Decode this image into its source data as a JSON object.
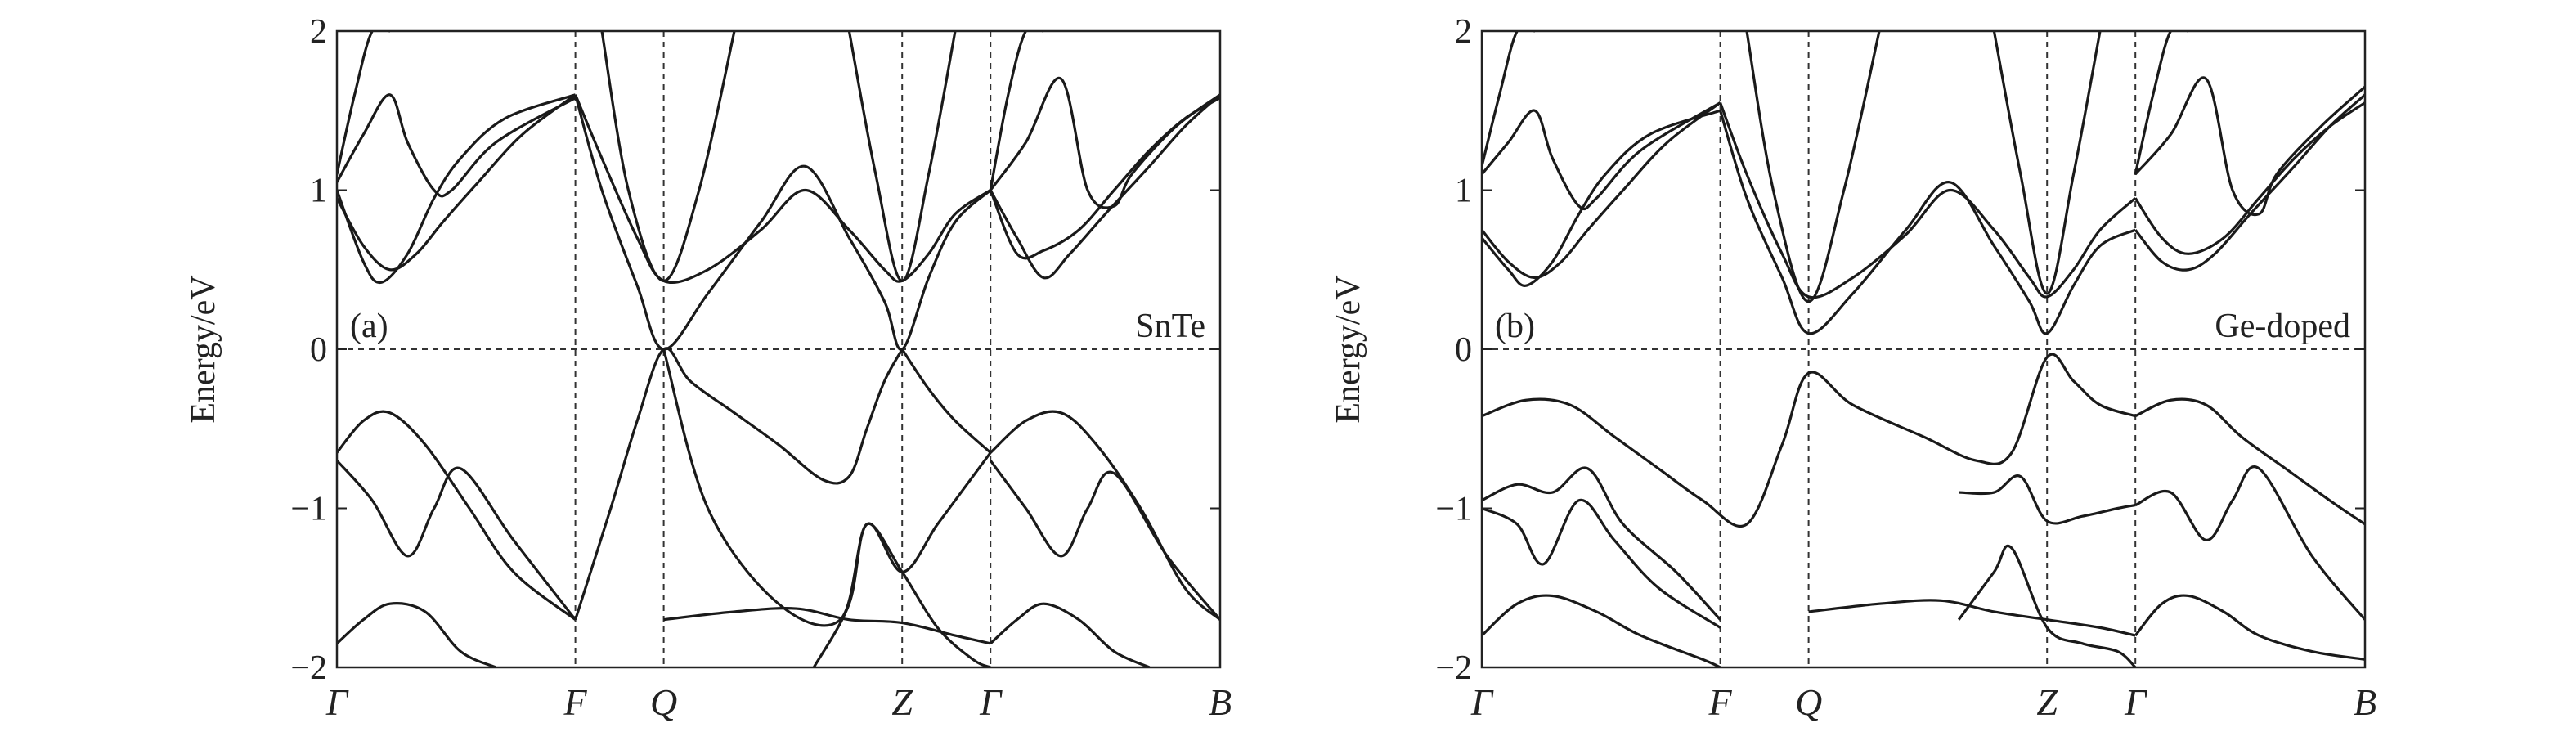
{
  "chart_data": [
    {
      "type": "line",
      "panel_label": "(a)",
      "material": "SnTe",
      "ylabel": "Energy/eV",
      "ylim": [
        -2,
        2
      ],
      "yticks": [
        -2,
        -1,
        0,
        1,
        2
      ],
      "ytick_labels": [
        "−2",
        "−1",
        "0",
        "1",
        "2"
      ],
      "kpoints": [
        {
          "label": "Γ",
          "x": 0.0
        },
        {
          "label": "F",
          "x": 0.27
        },
        {
          "label": "Q",
          "x": 0.37
        },
        {
          "label": "Z",
          "x": 0.64
        },
        {
          "label": "Γ",
          "x": 0.74
        },
        {
          "label": "B",
          "x": 1.0
        }
      ],
      "fermi_level": 0,
      "series": [
        {
          "name": "cond-Q-upper",
          "x": [
            0.27,
            0.3,
            0.34,
            0.37,
            0.42,
            0.48,
            0.53,
            0.58,
            0.62,
            0.64,
            0.67,
            0.7,
            0.74
          ],
          "y": [
            1.6,
            1.2,
            0.7,
            0.43,
            0.5,
            0.75,
            1.0,
            0.75,
            0.5,
            0.43,
            0.6,
            0.85,
            1.0
          ]
        },
        {
          "name": "cond-Q-lower",
          "x": [
            0.27,
            0.3,
            0.34,
            0.37,
            0.42,
            0.48,
            0.53,
            0.58,
            0.62,
            0.64,
            0.67,
            0.7,
            0.74
          ],
          "y": [
            1.6,
            1.0,
            0.4,
            0.0,
            0.35,
            0.8,
            1.15,
            0.7,
            0.3,
            0.0,
            0.45,
            0.8,
            1.0
          ]
        },
        {
          "name": "cond-Q-steep",
          "x": [
            0.3,
            0.33,
            0.37,
            0.41,
            0.45
          ],
          "y": [
            2.0,
            1.0,
            0.43,
            1.0,
            2.0
          ]
        },
        {
          "name": "cond-Z-steep",
          "x": [
            0.58,
            0.61,
            0.64,
            0.67,
            0.7
          ],
          "y": [
            2.0,
            1.1,
            0.43,
            1.1,
            2.0
          ]
        },
        {
          "name": "cond-G-left-1",
          "x": [
            0.0,
            0.03,
            0.06,
            0.09,
            0.12,
            0.16,
            0.21,
            0.27
          ],
          "y": [
            0.95,
            0.65,
            0.5,
            0.6,
            0.8,
            1.05,
            1.35,
            1.6
          ]
        },
        {
          "name": "cond-G-left-2",
          "x": [
            0.0,
            0.03,
            0.05,
            0.08,
            0.11,
            0.14,
            0.19,
            0.27
          ],
          "y": [
            1.0,
            0.55,
            0.42,
            0.6,
            0.95,
            1.2,
            1.45,
            1.6
          ]
        },
        {
          "name": "cond-G-left-3",
          "x": [
            0.0,
            0.03,
            0.06,
            0.08,
            0.11,
            0.13,
            0.18,
            0.27
          ],
          "y": [
            1.05,
            1.35,
            1.6,
            1.3,
            1.0,
            1.0,
            1.3,
            1.58
          ]
        },
        {
          "name": "cond-G-left-4",
          "x": [
            0.0,
            0.02,
            0.04,
            0.06
          ],
          "y": [
            1.1,
            1.6,
            2.0,
            2.0
          ]
        },
        {
          "name": "cond-G-right-1",
          "x": [
            0.74,
            0.77,
            0.8,
            0.83,
            0.87,
            0.92,
            0.96,
            1.0
          ],
          "y": [
            1.0,
            0.7,
            0.45,
            0.6,
            0.85,
            1.15,
            1.4,
            1.6
          ]
        },
        {
          "name": "cond-G-right-2",
          "x": [
            0.74,
            0.77,
            0.8,
            0.84,
            0.88,
            0.92,
            0.96,
            1.0
          ],
          "y": [
            1.0,
            0.6,
            0.62,
            0.75,
            1.0,
            1.25,
            1.45,
            1.58
          ]
        },
        {
          "name": "cond-G-right-3",
          "x": [
            0.74,
            0.78,
            0.82,
            0.85,
            0.88,
            0.9,
            0.95,
            1.0
          ],
          "y": [
            1.0,
            1.3,
            1.7,
            1.0,
            0.9,
            1.1,
            1.4,
            1.6
          ]
        },
        {
          "name": "cond-G-right-4",
          "x": [
            0.74,
            0.76,
            0.78,
            0.8
          ],
          "y": [
            1.0,
            1.6,
            2.0,
            2.0
          ]
        },
        {
          "name": "val-Q-Z-1",
          "x": [
            0.27,
            0.31,
            0.34,
            0.37,
            0.4,
            0.45,
            0.5,
            0.55,
            0.58,
            0.6,
            0.62,
            0.64
          ],
          "y": [
            -1.7,
            -1.0,
            -0.45,
            0.0,
            -0.2,
            -0.4,
            -0.6,
            -0.82,
            -0.8,
            -0.5,
            -0.2,
            0.0
          ]
        },
        {
          "name": "val-Q-Z-2",
          "x": [
            0.37,
            0.42,
            0.5,
            0.57,
            0.6,
            0.64,
            0.68,
            0.72,
            0.74
          ],
          "y": [
            0.0,
            -1.0,
            -1.6,
            -1.7,
            -1.1,
            -1.4,
            -1.1,
            -0.8,
            -0.65
          ]
        },
        {
          "name": "val-Z-G-1",
          "x": [
            0.64,
            0.67,
            0.7,
            0.74
          ],
          "y": [
            0.0,
            -0.25,
            -0.45,
            -0.65
          ]
        },
        {
          "name": "val-G-left-1",
          "x": [
            0.0,
            0.03,
            0.06,
            0.1,
            0.15,
            0.2,
            0.27
          ],
          "y": [
            -0.65,
            -0.45,
            -0.4,
            -0.6,
            -1.0,
            -1.4,
            -1.7
          ]
        },
        {
          "name": "val-G-left-2",
          "x": [
            0.0,
            0.04,
            0.08,
            0.11,
            0.14,
            0.2,
            0.27
          ],
          "y": [
            -0.7,
            -0.95,
            -1.3,
            -1.0,
            -0.75,
            -1.2,
            -1.7
          ]
        },
        {
          "name": "val-G-right-1",
          "x": [
            0.74,
            0.78,
            0.82,
            0.86,
            0.91,
            0.96,
            1.0
          ],
          "y": [
            -0.65,
            -0.45,
            -0.4,
            -0.6,
            -1.0,
            -1.5,
            -1.7
          ]
        },
        {
          "name": "val-G-right-2",
          "x": [
            0.74,
            0.78,
            0.82,
            0.85,
            0.88,
            0.94,
            1.0
          ],
          "y": [
            -0.7,
            -1.0,
            -1.3,
            -1.0,
            -0.78,
            -1.3,
            -1.7
          ]
        },
        {
          "name": "val-low-1",
          "x": [
            0.0,
            0.03,
            0.06,
            0.1,
            0.14,
            0.18
          ],
          "y": [
            -1.85,
            -1.7,
            -1.6,
            -1.65,
            -1.9,
            -2.0
          ]
        },
        {
          "name": "val-low-2",
          "x": [
            0.37,
            0.45,
            0.52,
            0.58,
            0.64,
            0.7,
            0.74
          ],
          "y": [
            -1.7,
            -1.65,
            -1.63,
            -1.7,
            -1.72,
            -1.8,
            -1.85
          ]
        },
        {
          "name": "val-low-3",
          "x": [
            0.74,
            0.77,
            0.8,
            0.84,
            0.88,
            0.92
          ],
          "y": [
            -1.85,
            -1.7,
            -1.6,
            -1.7,
            -1.9,
            -2.0
          ]
        },
        {
          "name": "val-low-4",
          "x": [
            0.54,
            0.58,
            0.6,
            0.64,
            0.68,
            0.72,
            0.74
          ],
          "y": [
            -2.0,
            -1.6,
            -1.1,
            -1.4,
            -1.75,
            -1.95,
            -2.0
          ]
        }
      ]
    },
    {
      "type": "line",
      "panel_label": "(b)",
      "material": "Ge-doped",
      "ylabel": "Energy/eV",
      "ylim": [
        -2,
        2
      ],
      "yticks": [
        -2,
        -1,
        0,
        1,
        2
      ],
      "ytick_labels": [
        "−2",
        "−1",
        "0",
        "1",
        "2"
      ],
      "kpoints": [
        {
          "label": "Γ",
          "x": 0.0
        },
        {
          "label": "F",
          "x": 0.27
        },
        {
          "label": "Q",
          "x": 0.37
        },
        {
          "label": "Z",
          "x": 0.64
        },
        {
          "label": "Γ",
          "x": 0.74
        },
        {
          "label": "B",
          "x": 1.0
        }
      ],
      "fermi_level": 0,
      "series": [
        {
          "name": "cond-Q-upper",
          "x": [
            0.27,
            0.3,
            0.34,
            0.37,
            0.42,
            0.48,
            0.53,
            0.58,
            0.62,
            0.64,
            0.67,
            0.7,
            0.74
          ],
          "y": [
            1.55,
            1.1,
            0.6,
            0.33,
            0.45,
            0.72,
            1.0,
            0.75,
            0.45,
            0.33,
            0.5,
            0.75,
            0.95
          ]
        },
        {
          "name": "cond-Q-lower",
          "x": [
            0.27,
            0.3,
            0.34,
            0.37,
            0.42,
            0.48,
            0.53,
            0.58,
            0.62,
            0.64,
            0.67,
            0.7,
            0.74
          ],
          "y": [
            1.5,
            0.95,
            0.45,
            0.1,
            0.35,
            0.75,
            1.05,
            0.65,
            0.3,
            0.1,
            0.4,
            0.65,
            0.75
          ]
        },
        {
          "name": "cond-Q-steep",
          "x": [
            0.3,
            0.33,
            0.37,
            0.41,
            0.45
          ],
          "y": [
            2.0,
            1.0,
            0.3,
            1.0,
            2.0
          ]
        },
        {
          "name": "cond-Z-steep",
          "x": [
            0.58,
            0.61,
            0.64,
            0.67,
            0.7
          ],
          "y": [
            2.0,
            1.1,
            0.35,
            1.1,
            2.0
          ]
        },
        {
          "name": "cond-G-left-1",
          "x": [
            0.0,
            0.03,
            0.06,
            0.09,
            0.12,
            0.16,
            0.21,
            0.27
          ],
          "y": [
            0.75,
            0.55,
            0.45,
            0.55,
            0.75,
            1.0,
            1.3,
            1.55
          ]
        },
        {
          "name": "cond-G-left-2",
          "x": [
            0.0,
            0.03,
            0.05,
            0.08,
            0.11,
            0.14,
            0.19,
            0.27
          ],
          "y": [
            0.7,
            0.5,
            0.4,
            0.55,
            0.85,
            1.1,
            1.35,
            1.5
          ]
        },
        {
          "name": "cond-G-left-3",
          "x": [
            0.0,
            0.03,
            0.06,
            0.08,
            0.11,
            0.13,
            0.18,
            0.27
          ],
          "y": [
            1.1,
            1.3,
            1.5,
            1.2,
            0.9,
            0.95,
            1.25,
            1.55
          ]
        },
        {
          "name": "cond-G-left-4",
          "x": [
            0.0,
            0.02,
            0.04,
            0.06
          ],
          "y": [
            1.15,
            1.6,
            2.0,
            2.0
          ]
        },
        {
          "name": "cond-G-right-1",
          "x": [
            0.74,
            0.77,
            0.8,
            0.83,
            0.87,
            0.92,
            0.96,
            1.0
          ],
          "y": [
            0.75,
            0.55,
            0.5,
            0.6,
            0.85,
            1.15,
            1.4,
            1.6
          ]
        },
        {
          "name": "cond-G-right-2",
          "x": [
            0.74,
            0.77,
            0.8,
            0.84,
            0.88,
            0.92,
            0.96,
            1.0
          ],
          "y": [
            0.95,
            0.7,
            0.6,
            0.7,
            0.95,
            1.2,
            1.4,
            1.55
          ]
        },
        {
          "name": "cond-G-right-3",
          "x": [
            0.74,
            0.78,
            0.82,
            0.85,
            0.88,
            0.9,
            0.95,
            1.0
          ],
          "y": [
            1.1,
            1.35,
            1.7,
            1.0,
            0.85,
            1.1,
            1.4,
            1.65
          ]
        },
        {
          "name": "cond-G-right-4",
          "x": [
            0.74,
            0.76,
            0.78,
            0.8
          ],
          "y": [
            1.1,
            1.6,
            2.0,
            2.0
          ]
        },
        {
          "name": "val-top",
          "x": [
            0.0,
            0.05,
            0.1,
            0.15,
            0.2,
            0.25,
            0.3,
            0.34,
            0.37,
            0.42,
            0.5,
            0.56,
            0.6,
            0.64,
            0.67,
            0.7,
            0.74
          ],
          "y": [
            -0.42,
            -0.32,
            -0.35,
            -0.55,
            -0.75,
            -0.95,
            -1.1,
            -0.6,
            -0.15,
            -0.35,
            -0.55,
            -0.7,
            -0.65,
            -0.05,
            -0.2,
            -0.35,
            -0.42
          ]
        },
        {
          "name": "val-second",
          "x": [
            0.0,
            0.04,
            0.08,
            0.12,
            0.16,
            0.22,
            0.27
          ],
          "y": [
            -0.95,
            -0.85,
            -0.9,
            -0.75,
            -1.1,
            -1.4,
            -1.7
          ]
        },
        {
          "name": "val-third",
          "x": [
            0.0,
            0.04,
            0.07,
            0.11,
            0.15,
            0.2,
            0.27
          ],
          "y": [
            -1.0,
            -1.1,
            -1.35,
            -0.95,
            -1.2,
            -1.5,
            -1.75
          ]
        },
        {
          "name": "val-Z-band",
          "x": [
            0.54,
            0.58,
            0.61,
            0.64,
            0.68,
            0.72,
            0.74
          ],
          "y": [
            -0.9,
            -0.9,
            -0.8,
            -1.08,
            -1.05,
            -1.0,
            -0.98
          ]
        },
        {
          "name": "val-G-right-1",
          "x": [
            0.74,
            0.78,
            0.82,
            0.86,
            0.91,
            0.96,
            1.0
          ],
          "y": [
            -0.42,
            -0.32,
            -0.35,
            -0.55,
            -0.75,
            -0.95,
            -1.1
          ]
        },
        {
          "name": "val-G-right-2",
          "x": [
            0.74,
            0.78,
            0.82,
            0.85,
            0.88,
            0.94,
            1.0
          ],
          "y": [
            -0.98,
            -0.9,
            -1.2,
            -0.95,
            -0.75,
            -1.3,
            -1.7
          ]
        },
        {
          "name": "val-low-1",
          "x": [
            0.0,
            0.04,
            0.08,
            0.13,
            0.18,
            0.25,
            0.27
          ],
          "y": [
            -1.8,
            -1.6,
            -1.55,
            -1.65,
            -1.8,
            -1.95,
            -2.0
          ]
        },
        {
          "name": "val-low-2",
          "x": [
            0.37,
            0.45,
            0.52,
            0.58,
            0.64,
            0.7,
            0.74
          ],
          "y": [
            -1.65,
            -1.6,
            -1.58,
            -1.65,
            -1.7,
            -1.75,
            -1.8
          ]
        },
        {
          "name": "val-low-3",
          "x": [
            0.74,
            0.77,
            0.8,
            0.84,
            0.88,
            0.94,
            1.0
          ],
          "y": [
            -1.8,
            -1.6,
            -1.55,
            -1.65,
            -1.8,
            -1.9,
            -1.95
          ]
        },
        {
          "name": "val-low-4",
          "x": [
            0.54,
            0.58,
            0.6,
            0.64,
            0.68,
            0.72,
            0.74
          ],
          "y": [
            -1.7,
            -1.4,
            -1.25,
            -1.75,
            -1.85,
            -1.9,
            -2.0
          ]
        }
      ]
    }
  ]
}
